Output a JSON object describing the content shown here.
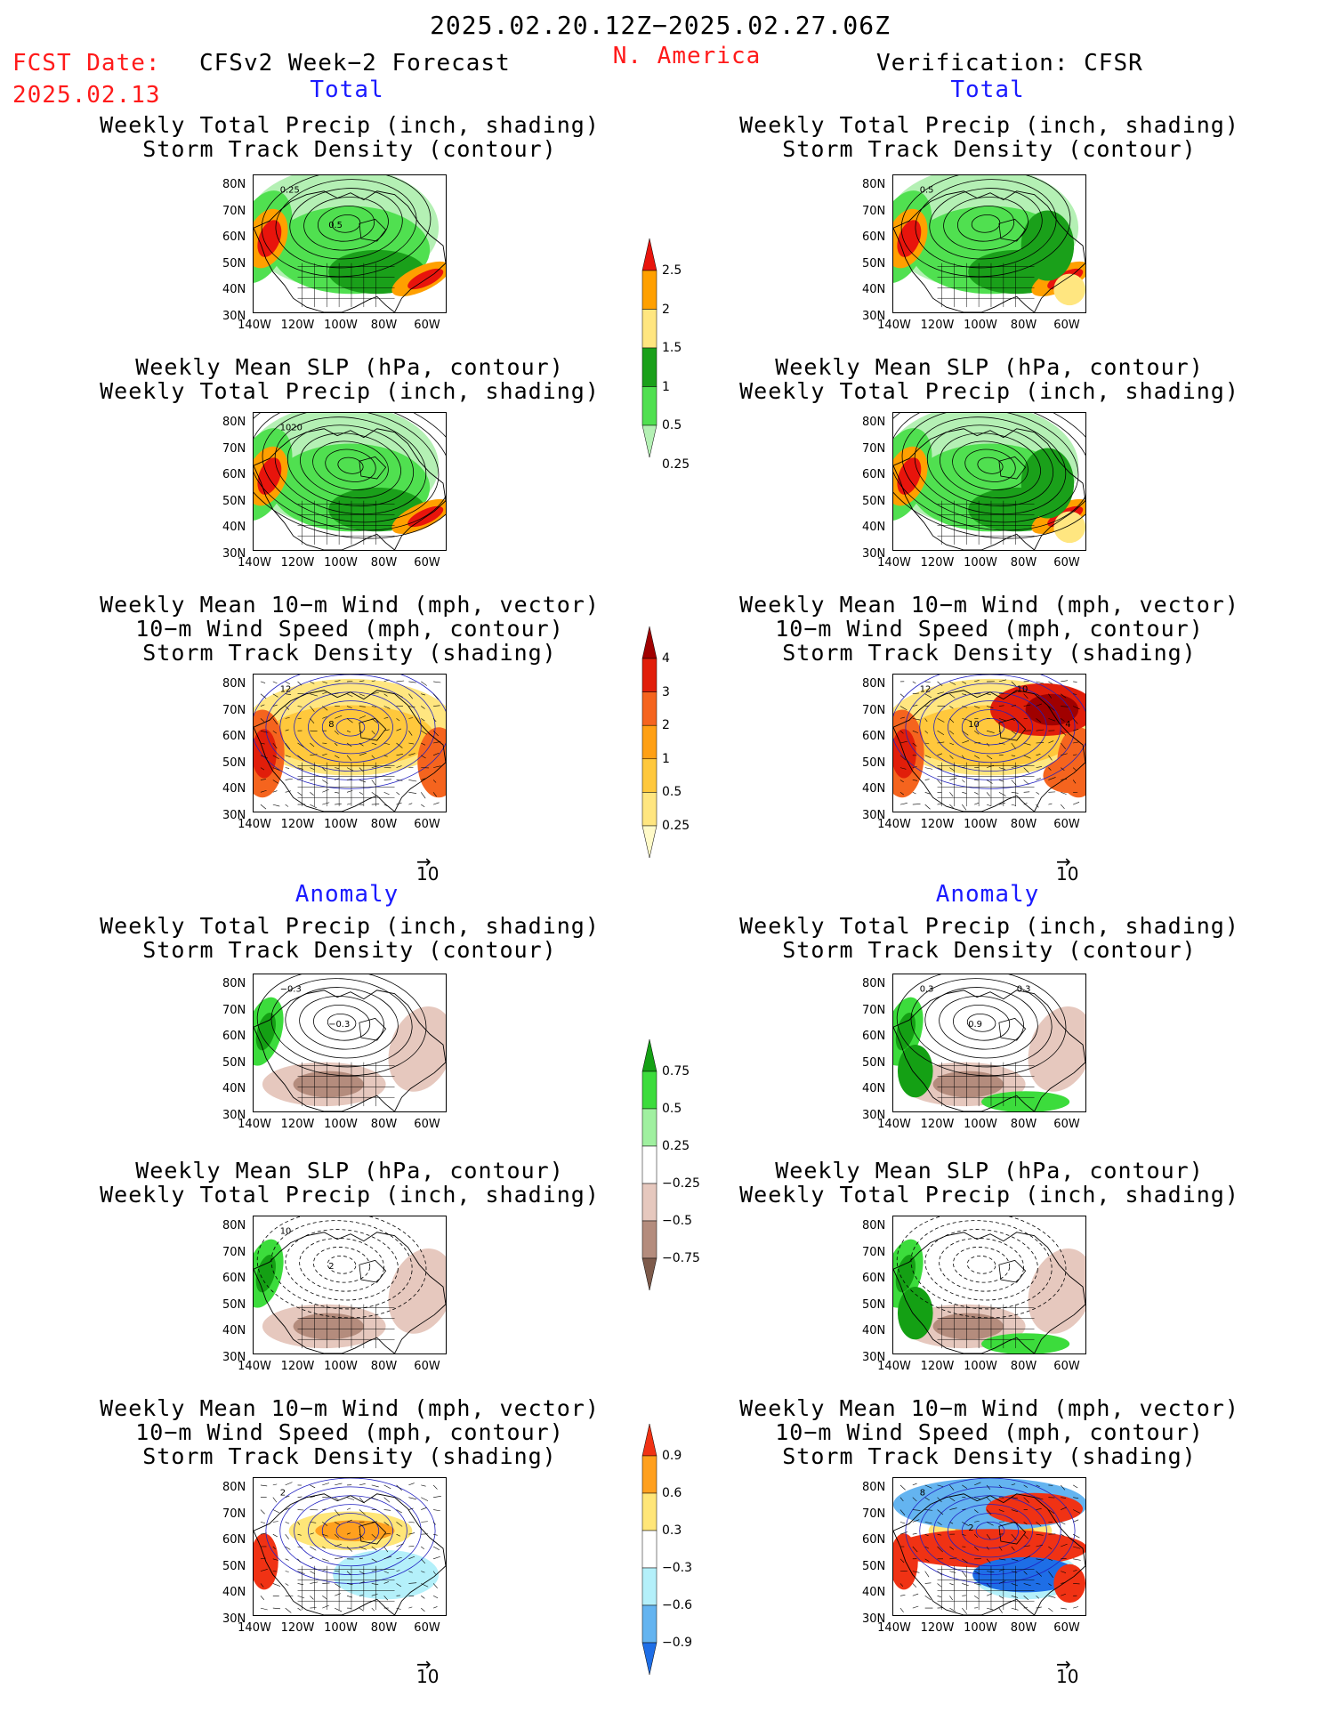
{
  "header": {
    "period": "2025.02.20.12Z−2025.02.27.06Z",
    "fcst_label": "FCST Date:",
    "fcst_date": "2025.02.13",
    "left_title": "CFSv2 Week−2 Forecast",
    "region": "N. America",
    "right_title": "Verification: CFSR"
  },
  "sections": {
    "total": "Total",
    "anomaly": "Anomaly"
  },
  "panel_titles": {
    "precip_storm": [
      "Weekly Total Precip (inch, shading)",
      "Storm Track Density (contour)"
    ],
    "slp_precip": [
      "Weekly Mean SLP (hPa, contour)",
      "Weekly Total Precip (inch, shading)"
    ],
    "wind_storm": [
      "Weekly Mean 10−m Wind (mph, vector)",
      "10−m Wind Speed (mph, contour)",
      "Storm Track Density (shading)"
    ]
  },
  "axes": {
    "lat_labels": [
      "80N",
      "70N",
      "60N",
      "50N",
      "40N",
      "30N"
    ],
    "lon_labels": [
      "140W",
      "120W",
      "100W",
      "80W",
      "60W"
    ]
  },
  "vector_ref": "10",
  "colorbars": {
    "precip_total": {
      "labels": [
        "2.5",
        "2",
        "1.5",
        "1",
        "0.5",
        "0.25"
      ],
      "colors": [
        "#e8140c",
        "#ffa000",
        "#ffe680",
        "#1aa01a",
        "#50e050",
        "#b4f0b4"
      ]
    },
    "storm_total": {
      "labels": [
        "4",
        "3",
        "2",
        "1",
        "0.5",
        "0.25"
      ],
      "colors": [
        "#a00000",
        "#e11e0a",
        "#f5641e",
        "#ffa014",
        "#ffc83c",
        "#ffe680",
        "#fffac8"
      ]
    },
    "precip_anom": {
      "labels": [
        "0.75",
        "0.5",
        "0.25",
        "−0.25",
        "−0.5",
        "−0.75"
      ],
      "colors": [
        "#14a014",
        "#3cdc3c",
        "#a0f0a0",
        "#ffffff",
        "#e6c8be",
        "#b48c7d",
        "#7d5a4b"
      ]
    },
    "storm_anom": {
      "labels": [
        "0.9",
        "0.6",
        "0.3",
        "−0.3",
        "−0.6",
        "−0.9"
      ],
      "colors": [
        "#f03214",
        "#ffa01e",
        "#ffe678",
        "#ffffff",
        "#b4f0fa",
        "#64b4f0",
        "#1e6ee6"
      ]
    }
  },
  "panel_annotations": {
    "fc_precip_storm": [
      "0.25",
      "0.5"
    ],
    "vf_precip_storm": [
      "0.5"
    ],
    "fc_slp_precip": [
      "1020"
    ],
    "fc_wind_storm": [
      "12",
      "8"
    ],
    "vf_wind_storm": [
      "12",
      "10",
      "10",
      "4"
    ],
    "fc_precip_anom": [
      "−0.3",
      "−0.3"
    ],
    "vf_precip_anom": [
      "0.3",
      "0.9",
      "0.3"
    ],
    "fc_slp_anom": [
      "10",
      "2"
    ],
    "fc_wind_anom": [
      "2"
    ],
    "vf_wind_anom": [
      "8",
      "2"
    ]
  }
}
